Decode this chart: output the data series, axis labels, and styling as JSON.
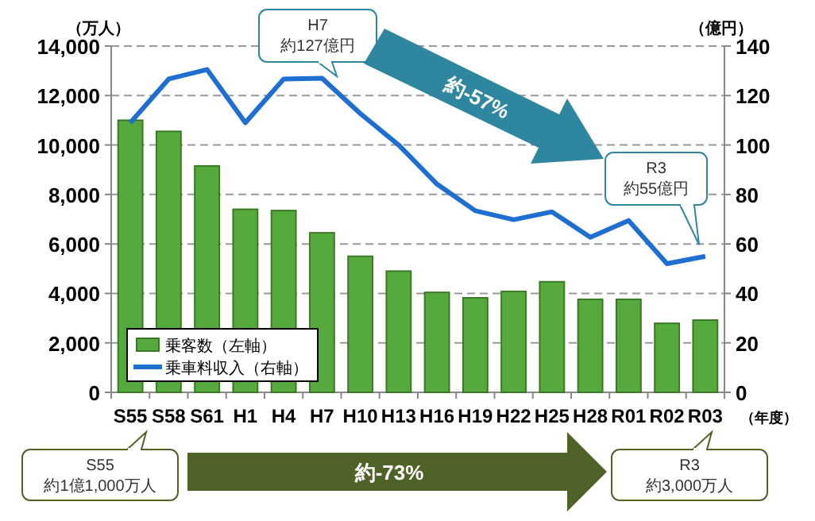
{
  "chart_data": {
    "type": "bar",
    "categories": [
      "S55",
      "S58",
      "S61",
      "H1",
      "H4",
      "H7",
      "H10",
      "H13",
      "H16",
      "H19",
      "H22",
      "H25",
      "H28",
      "R01",
      "R02",
      "R03"
    ],
    "series": [
      {
        "name": "乗客数（左軸）",
        "color": "#56a93c",
        "values": [
          11000,
          10550,
          9150,
          7400,
          7350,
          6450,
          5500,
          4900,
          4040,
          3820,
          4080,
          4470,
          3760,
          3760,
          2790,
          2920
        ]
      },
      {
        "name": "乗車料収入（右軸）",
        "type": "line",
        "axis": "y2",
        "color": "#1f6fd0",
        "values": [
          109,
          126.7,
          130.5,
          109,
          126.7,
          127,
          112.7,
          100,
          84.2,
          73.4,
          69.8,
          73,
          62.7,
          69.4,
          52,
          55
        ]
      }
    ],
    "ylabel": "（万人）",
    "y2label": "（億円）",
    "xlabel": "（年度）",
    "ylim": [
      0,
      14000
    ],
    "yticks": [
      0,
      {
        "value": 2000,
        "label": "2,000"
      },
      {
        "value": 4000,
        "label": "4,000"
      },
      {
        "value": 6000,
        "label": "6,000"
      },
      {
        "value": 8000,
        "label": "8,000"
      },
      {
        "value": 10000,
        "label": "10,000"
      },
      {
        "value": 12000,
        "label": "12,000"
      },
      {
        "value": 14000,
        "label": "14,000"
      }
    ],
    "y2lim": [
      0,
      140
    ],
    "y2ticks": [
      0,
      20,
      40,
      60,
      80,
      100,
      120,
      140
    ],
    "grid": "y",
    "legend": "bottom left",
    "marker": "none",
    "line_style": "solid",
    "annotations": [
      "H7\n約127億円",
      "約-57%",
      "R3\n約55億円",
      "S55\n約1億1,000万人",
      "約-73%",
      "R3\n約3,000万人"
    ]
  }
}
